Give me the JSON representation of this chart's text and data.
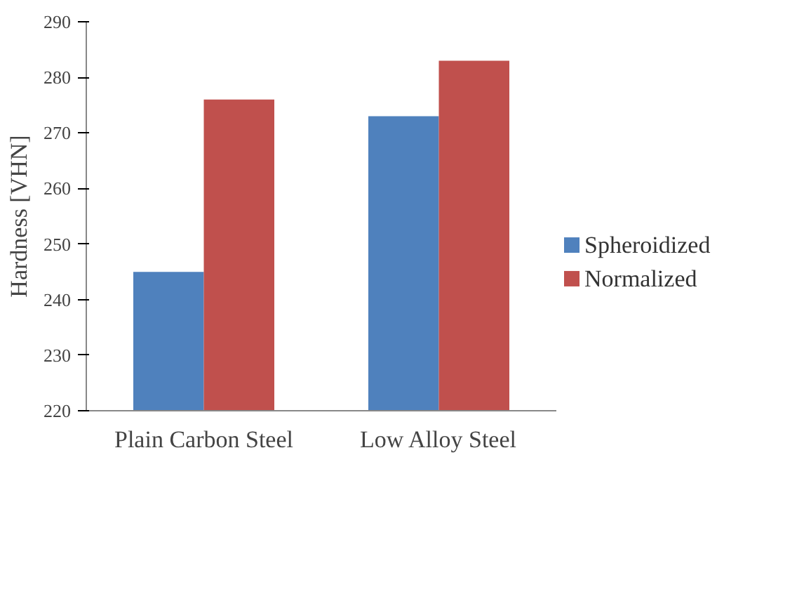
{
  "chart_data": {
    "type": "bar",
    "ylabel": "Hardness [VHN]",
    "categories": [
      "Plain Carbon Steel",
      "Low Alloy Steel"
    ],
    "series": [
      {
        "name": "Spheroidized",
        "color": "#4f81bd",
        "values": [
          245,
          273
        ]
      },
      {
        "name": "Normalized",
        "color": "#c0504d",
        "values": [
          276,
          283
        ]
      }
    ],
    "ylim": [
      220,
      290
    ],
    "yticks": [
      220,
      230,
      240,
      250,
      260,
      270,
      280,
      290
    ],
    "grid": false,
    "legend": "right"
  }
}
